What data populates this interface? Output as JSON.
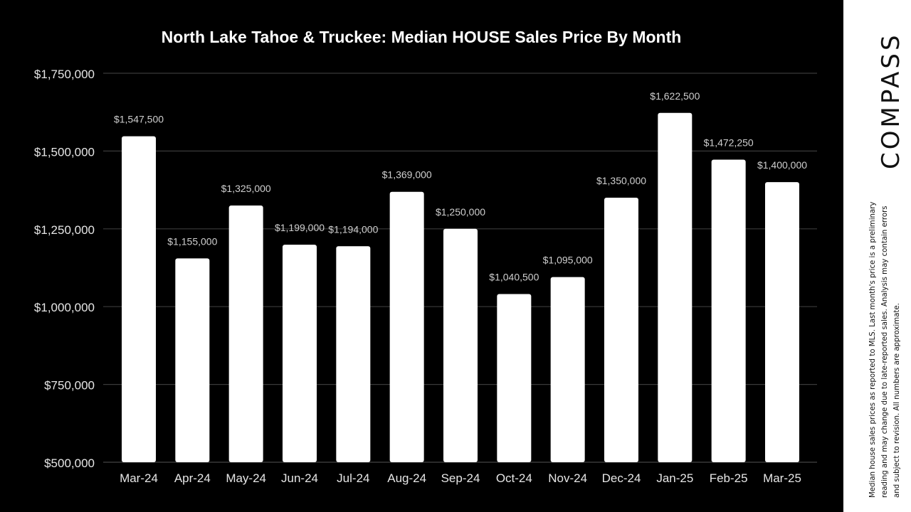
{
  "chart_data": {
    "type": "bar",
    "title": "North Lake Tahoe & Truckee: Median HOUSE Sales Price By Month",
    "xlabel": "",
    "ylabel": "",
    "ylim": [
      500000,
      1750000
    ],
    "grid": true,
    "yticks": [
      500000,
      750000,
      1000000,
      1250000,
      1500000,
      1750000
    ],
    "ytick_labels": [
      "$500,000",
      "$750,000",
      "$1,000,000",
      "$1,250,000",
      "$1,500,000",
      "$1,750,000"
    ],
    "categories": [
      "Mar-24",
      "Apr-24",
      "May-24",
      "Jun-24",
      "Jul-24",
      "Aug-24",
      "Sep-24",
      "Oct-24",
      "Nov-24",
      "Dec-24",
      "Jan-25",
      "Feb-25",
      "Mar-25"
    ],
    "values": [
      1547500,
      1155000,
      1325000,
      1199000,
      1194000,
      1369000,
      1250000,
      1040500,
      1095000,
      1350000,
      1622500,
      1472250,
      1400000
    ],
    "data_labels": [
      "$1,547,500",
      "$1,155,000",
      "$1,325,000",
      "$1,199,000",
      "$1,194,000",
      "$1,369,000",
      "$1,250,000",
      "$1,040,500",
      "$1,095,000",
      "$1,350,000",
      "$1,622,500",
      "$1,472,250",
      "$1,400,000"
    ],
    "colors": {
      "background": "#000000",
      "bar": "#ffffff",
      "grid": "#3a3a3a",
      "text": "#e6e6e6",
      "label": "#cfcfcf"
    }
  },
  "brand": {
    "logo_text": "COMPASS"
  },
  "disclaimer": "Median house sales prices as reported to MLS. Last month's price is a preliminary reading and may change due to late-reported sales. Analysis may contain errors and subject to revision. All numbers are approximate."
}
